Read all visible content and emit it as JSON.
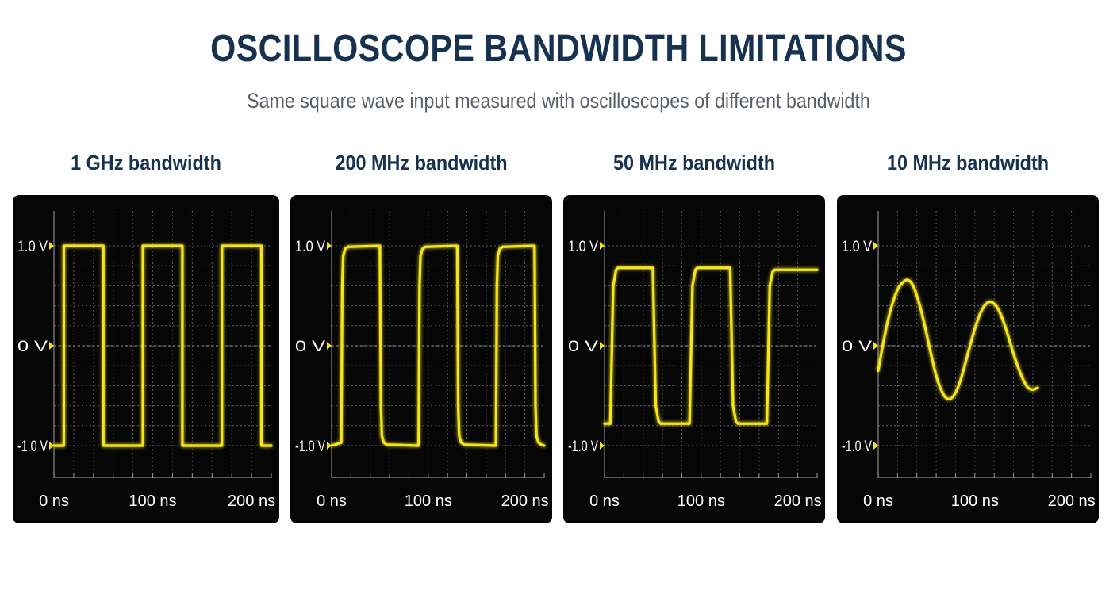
{
  "title": "OSCILLOSCOPE BANDWIDTH LIMITATIONS",
  "subtitle": "Same square wave input measured with oscilloscopes of different bandwidth",
  "colors": {
    "trace": "#f5e51b",
    "screen": "#060606",
    "grid": "#5a5a5a",
    "axis_text": "#ffffff",
    "title": "#16324f",
    "subtitle": "#5a5f66"
  },
  "chart_data": [
    {
      "type": "line",
      "title": "1 GHz bandwidth",
      "xlim": [
        0,
        220
      ],
      "ylim": [
        -1.25,
        1.25
      ],
      "y_ticks": [
        {
          "v": 1.0,
          "label": "1.0 V"
        },
        {
          "v": 0,
          "label": "0 V"
        },
        {
          "v": -1.0,
          "label": "-1.0 V"
        }
      ],
      "x_ticks": [
        {
          "v": 0,
          "label": "0 ns"
        },
        {
          "v": 100,
          "label": "100 ns"
        },
        {
          "v": 200,
          "label": "200 ns"
        }
      ],
      "grid": true,
      "series": [
        {
          "points": [
            [
              0,
              -1.0
            ],
            [
              10,
              -1.0
            ],
            [
              10,
              1.0
            ],
            [
              50,
              1.0
            ],
            [
              50,
              -1.0
            ],
            [
              90,
              -1.0
            ],
            [
              90,
              1.0
            ],
            [
              130,
              1.0
            ],
            [
              130,
              -1.0
            ],
            [
              170,
              -1.0
            ],
            [
              170,
              1.0
            ],
            [
              210,
              1.0
            ],
            [
              210,
              -1.0
            ],
            [
              220,
              -1.0
            ]
          ]
        }
      ]
    },
    {
      "type": "line",
      "title": "200 MHz bandwidth",
      "xlim": [
        0,
        220
      ],
      "ylim": [
        -1.25,
        1.25
      ],
      "y_ticks": [
        {
          "v": 1.0,
          "label": "1.0 V"
        },
        {
          "v": 0,
          "label": "0 V"
        },
        {
          "v": -1.0,
          "label": "-1.0 V"
        }
      ],
      "x_ticks": [
        {
          "v": 0,
          "label": "0 ns"
        },
        {
          "v": 100,
          "label": "100 ns"
        },
        {
          "v": 200,
          "label": "200 ns"
        }
      ],
      "grid": true,
      "series": [
        {
          "points": [
            [
              0,
              -1.0
            ],
            [
              10,
              -0.97
            ],
            [
              11,
              0.6
            ],
            [
              12,
              0.9
            ],
            [
              14,
              0.97
            ],
            [
              17,
              0.99
            ],
            [
              50,
              1.0
            ],
            [
              51,
              -0.6
            ],
            [
              52,
              -0.9
            ],
            [
              54,
              -0.97
            ],
            [
              57,
              -0.99
            ],
            [
              90,
              -1.0
            ],
            [
              91,
              0.6
            ],
            [
              92,
              0.9
            ],
            [
              94,
              0.97
            ],
            [
              97,
              0.99
            ],
            [
              130,
              1.0
            ],
            [
              131,
              -0.6
            ],
            [
              132,
              -0.9
            ],
            [
              134,
              -0.97
            ],
            [
              137,
              -0.99
            ],
            [
              170,
              -1.0
            ],
            [
              171,
              0.6
            ],
            [
              172,
              0.9
            ],
            [
              174,
              0.97
            ],
            [
              177,
              0.99
            ],
            [
              210,
              1.0
            ],
            [
              211,
              -0.6
            ],
            [
              212,
              -0.9
            ],
            [
              214,
              -0.97
            ],
            [
              217,
              -0.99
            ],
            [
              220,
              -1.0
            ]
          ]
        }
      ]
    },
    {
      "type": "line",
      "title": "50 MHz bandwidth",
      "xlim": [
        0,
        220
      ],
      "ylim": [
        -1.25,
        1.25
      ],
      "y_ticks": [
        {
          "v": 1.0,
          "label": "1.0 V"
        },
        {
          "v": 0,
          "label": "0 V"
        },
        {
          "v": -1.0,
          "label": "-1.0 V"
        }
      ],
      "x_ticks": [
        {
          "v": 0,
          "label": "0 ns"
        },
        {
          "v": 100,
          "label": "100 ns"
        },
        {
          "v": 200,
          "label": "200 ns"
        }
      ],
      "grid": true,
      "series": [
        {
          "points": [
            [
              0,
              -0.78
            ],
            [
              6,
              -0.78
            ],
            [
              9,
              0.6
            ],
            [
              12,
              0.76
            ],
            [
              14,
              0.78
            ],
            [
              50,
              0.78
            ],
            [
              53,
              -0.6
            ],
            [
              56,
              -0.76
            ],
            [
              58,
              -0.78
            ],
            [
              88,
              -0.78
            ],
            [
              91,
              0.6
            ],
            [
              94,
              0.76
            ],
            [
              96,
              0.78
            ],
            [
              130,
              0.78
            ],
            [
              133,
              -0.6
            ],
            [
              136,
              -0.76
            ],
            [
              138,
              -0.78
            ],
            [
              168,
              -0.78
            ],
            [
              171,
              0.6
            ],
            [
              174,
              0.74
            ],
            [
              176,
              0.76
            ],
            [
              220,
              0.76
            ]
          ]
        }
      ]
    },
    {
      "type": "line",
      "title": "10 MHz bandwidth",
      "xlim": [
        0,
        220
      ],
      "ylim": [
        -1.25,
        1.25
      ],
      "y_ticks": [
        {
          "v": 1.0,
          "label": "1.0 V"
        },
        {
          "v": 0,
          "label": "0 V"
        },
        {
          "v": -1.0,
          "label": "-1.0 V"
        }
      ],
      "x_ticks": [
        {
          "v": 0,
          "label": "0 ns"
        },
        {
          "v": 100,
          "label": "100 ns"
        },
        {
          "v": 200,
          "label": "200 ns"
        }
      ],
      "grid": true,
      "series": [
        {
          "points": [
            [
              0,
              -0.25
            ],
            [
              5,
              0.02
            ],
            [
              10,
              0.25
            ],
            [
              15,
              0.43
            ],
            [
              20,
              0.56
            ],
            [
              25,
              0.63
            ],
            [
              30,
              0.66
            ],
            [
              35,
              0.62
            ],
            [
              40,
              0.5
            ],
            [
              45,
              0.33
            ],
            [
              50,
              0.12
            ],
            [
              55,
              -0.1
            ],
            [
              60,
              -0.3
            ],
            [
              65,
              -0.44
            ],
            [
              70,
              -0.52
            ],
            [
              75,
              -0.53
            ],
            [
              80,
              -0.47
            ],
            [
              85,
              -0.35
            ],
            [
              90,
              -0.18
            ],
            [
              95,
              0.0
            ],
            [
              100,
              0.17
            ],
            [
              105,
              0.31
            ],
            [
              110,
              0.4
            ],
            [
              115,
              0.44
            ],
            [
              120,
              0.42
            ],
            [
              125,
              0.35
            ],
            [
              130,
              0.23
            ],
            [
              135,
              0.08
            ],
            [
              140,
              -0.08
            ],
            [
              145,
              -0.22
            ],
            [
              150,
              -0.34
            ],
            [
              155,
              -0.42
            ],
            [
              160,
              -0.44
            ],
            [
              165,
              -0.42
            ]
          ]
        }
      ]
    }
  ]
}
